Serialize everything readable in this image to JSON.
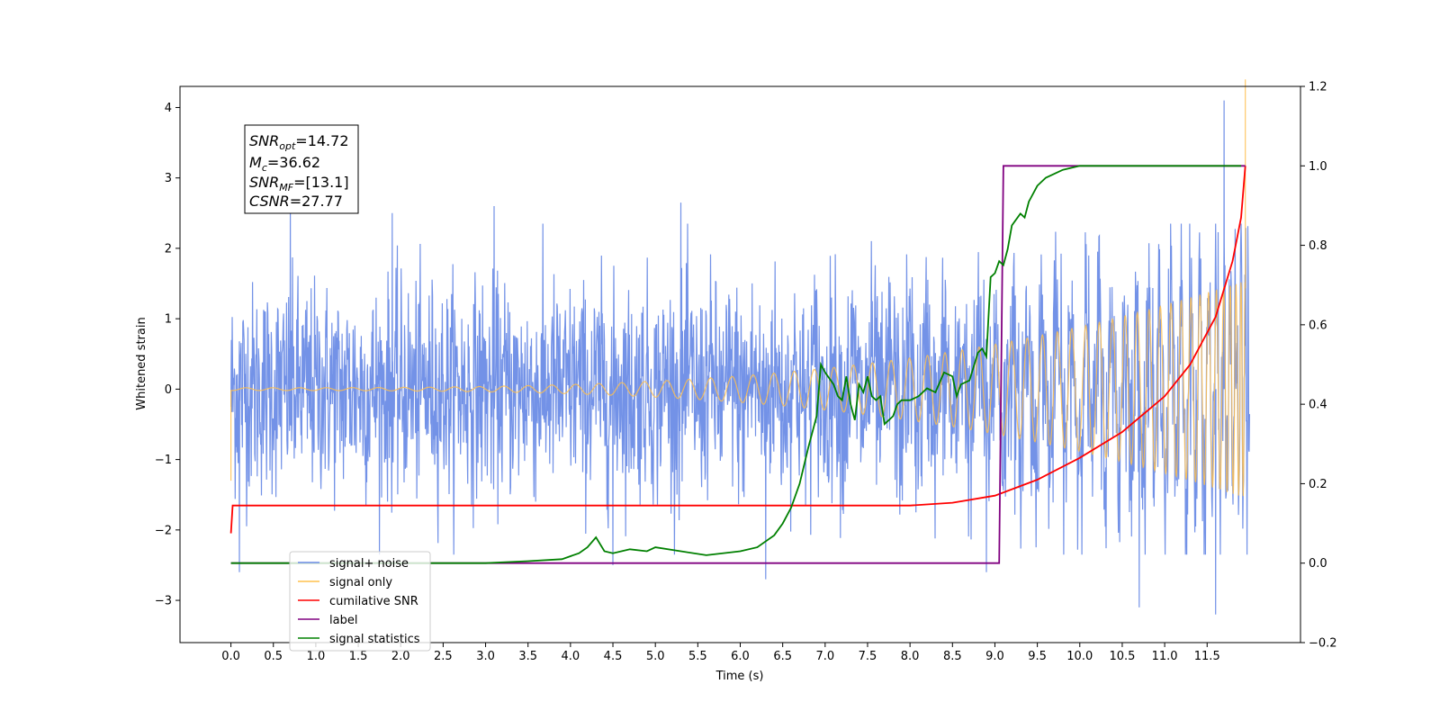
{
  "chart_data": {
    "type": "line",
    "xlabel": "Time (s)",
    "ylabel": "Whitened strain",
    "xlim": [
      -0.6,
      12.6
    ],
    "ylim": [
      -3.6,
      4.3
    ],
    "y2lim": [
      -0.2,
      1.2
    ],
    "x_ticks": [
      "0.0",
      "0.5",
      "1.0",
      "1.5",
      "2.0",
      "2.5",
      "3.0",
      "3.5",
      "4.0",
      "4.5",
      "5.0",
      "5.5",
      "6.0",
      "6.5",
      "7.0",
      "7.5",
      "8.0",
      "8.5",
      "9.0",
      "9.5",
      "10.0",
      "10.5",
      "11.0",
      "11.5"
    ],
    "y_ticks": [
      "−3",
      "−2",
      "−1",
      "0",
      "1",
      "2",
      "3",
      "4"
    ],
    "y2_ticks": [
      "−0.2",
      "0.0",
      "0.2",
      "0.4",
      "0.6",
      "0.8",
      "1.0",
      "1.2"
    ],
    "legend_position": "lower-left",
    "annotation": {
      "lines": [
        {
          "main": "SNR",
          "sub": "opt",
          "value": "=14.72"
        },
        {
          "main": "M",
          "sub": "c",
          "value": "=36.62"
        },
        {
          "main": "SNR",
          "sub": "MF",
          "value": "=[13.1]"
        },
        {
          "main": "CSNR",
          "sub": "",
          "value": "=27.77"
        }
      ]
    },
    "series": [
      {
        "name": "signal+ noise",
        "axis": "left",
        "color": "#6c8ce6",
        "kind": "noise",
        "std": 0.75,
        "envelope_x": [
          0,
          12
        ],
        "peaks": [
          [
            0.7,
            2.65
          ],
          [
            1.9,
            2.5
          ],
          [
            3.1,
            2.6
          ],
          [
            5.3,
            2.65
          ],
          [
            11.7,
            4.1
          ],
          [
            10.7,
            -3.1
          ],
          [
            11.6,
            -3.2
          ],
          [
            0.1,
            -2.6
          ],
          [
            4.5,
            -2.5
          ],
          [
            8.9,
            -2.6
          ],
          [
            6.3,
            -2.7
          ]
        ]
      },
      {
        "name": "signal only",
        "axis": "left",
        "color": "#ffc04d",
        "kind": "chirp",
        "x_start": 0.0,
        "x_end": 11.95,
        "amp_start": 0.02,
        "amp_end": 1.55,
        "peak": 4.4
      },
      {
        "name": "cumilative SNR",
        "axis": "right",
        "color": "#ff0000",
        "x": [
          0.0,
          0.02,
          1.0,
          2.0,
          3.0,
          4.0,
          5.0,
          6.0,
          7.0,
          8.0,
          8.5,
          9.0,
          9.5,
          10.0,
          10.5,
          11.0,
          11.3,
          11.6,
          11.8,
          11.9,
          11.95
        ],
        "y": [
          0.075,
          0.145,
          0.145,
          0.145,
          0.145,
          0.145,
          0.145,
          0.145,
          0.145,
          0.145,
          0.152,
          0.17,
          0.21,
          0.265,
          0.33,
          0.42,
          0.5,
          0.62,
          0.76,
          0.87,
          1.0
        ]
      },
      {
        "name": "label",
        "axis": "right",
        "color": "#800080",
        "x": [
          0.0,
          9.05,
          9.1,
          11.95
        ],
        "y": [
          0.0,
          0.0,
          1.0,
          1.0
        ]
      },
      {
        "name": "signal statistics",
        "axis": "right",
        "color": "#008000",
        "x": [
          0.0,
          0.5,
          1.0,
          2.0,
          3.0,
          3.5,
          3.9,
          4.1,
          4.2,
          4.3,
          4.4,
          4.5,
          4.7,
          4.9,
          5.0,
          5.3,
          5.6,
          6.0,
          6.2,
          6.4,
          6.5,
          6.6,
          6.7,
          6.8,
          6.9,
          6.95,
          7.0,
          7.1,
          7.15,
          7.2,
          7.25,
          7.3,
          7.35,
          7.4,
          7.45,
          7.5,
          7.55,
          7.6,
          7.65,
          7.7,
          7.75,
          7.8,
          7.85,
          7.9,
          8.0,
          8.1,
          8.2,
          8.3,
          8.4,
          8.5,
          8.55,
          8.6,
          8.7,
          8.8,
          8.85,
          8.9,
          8.95,
          9.0,
          9.05,
          9.1,
          9.15,
          9.2,
          9.3,
          9.35,
          9.4,
          9.5,
          9.6,
          9.8,
          10.0,
          10.5,
          11.0,
          11.5,
          11.9
        ],
        "y": [
          0.0,
          0.0,
          0.0,
          0.0,
          0.0,
          0.005,
          0.01,
          0.025,
          0.04,
          0.065,
          0.03,
          0.025,
          0.035,
          0.03,
          0.04,
          0.03,
          0.02,
          0.03,
          0.04,
          0.07,
          0.1,
          0.14,
          0.2,
          0.29,
          0.37,
          0.5,
          0.48,
          0.45,
          0.42,
          0.41,
          0.47,
          0.4,
          0.36,
          0.45,
          0.43,
          0.47,
          0.42,
          0.41,
          0.42,
          0.35,
          0.36,
          0.37,
          0.4,
          0.41,
          0.41,
          0.42,
          0.44,
          0.43,
          0.48,
          0.47,
          0.42,
          0.45,
          0.46,
          0.53,
          0.54,
          0.52,
          0.72,
          0.73,
          0.76,
          0.75,
          0.79,
          0.85,
          0.88,
          0.87,
          0.91,
          0.95,
          0.97,
          0.99,
          1.0,
          1.0,
          1.0,
          1.0,
          1.0
        ]
      }
    ]
  }
}
